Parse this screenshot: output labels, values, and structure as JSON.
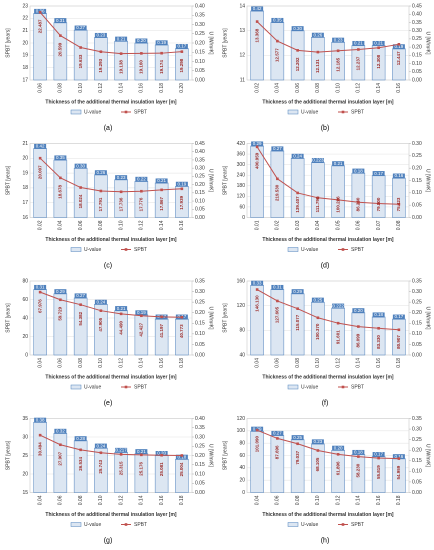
{
  "chart_data": [
    {
      "type": "combo",
      "caption": "(a)",
      "ylabel": "SPBT [years]",
      "y2label": "U [W/m²K]",
      "xlabel": "Thickness of the additional thermal insulation layer [m]",
      "categories": [
        "0.06",
        "0.08",
        "0.10",
        "0.12",
        "0.14",
        "0.16",
        "0.18",
        "0.20"
      ],
      "ylim": [
        17,
        23
      ],
      "yticks": [
        17,
        18,
        19,
        20,
        21,
        22,
        23
      ],
      "y2lim": [
        0,
        0.4
      ],
      "y2ticks": [
        {
          "value": 0,
          "label": "0.00"
        },
        {
          "value": 0.05,
          "label": "0.05"
        },
        {
          "value": 0.1,
          "label": "0.10"
        },
        {
          "value": 0.15,
          "label": "0.15"
        },
        {
          "value": 0.2,
          "label": "0.20"
        },
        {
          "value": 0.25,
          "label": "0.25"
        },
        {
          "value": 0.3,
          "label": "0.30"
        },
        {
          "value": 0.35,
          "label": "0.35"
        },
        {
          "value": 0.4,
          "label": "0.40"
        }
      ],
      "series": [
        {
          "name": "U-value",
          "type": "bar",
          "axis": "y2",
          "color": "#dce6f2",
          "values": [
            0.36,
            0.31,
            0.27,
            0.23,
            0.21,
            0.2,
            0.19,
            0.17
          ],
          "value_labels": [
            "0.36",
            "0.31",
            "0.27",
            "0.23",
            "0.21",
            "0.20",
            "0.19",
            "0.17"
          ]
        },
        {
          "name": "SPBT",
          "type": "line",
          "color": "#c0504d",
          "values": [
            22.487,
            20.599,
            19.633,
            19.293,
            19.138,
            19.16,
            19.174,
            19.298
          ],
          "value_labels": [
            "22.487",
            "20.599",
            "19.633",
            "19.293",
            "19.138",
            "19.160",
            "19.174",
            "19.298"
          ]
        }
      ]
    },
    {
      "type": "combo",
      "caption": "(b)",
      "ylabel": "SPBT [years]",
      "y2label": "U [W/m²K]",
      "xlabel": "Thickness of the additional thermal insulation layer [m]",
      "categories": [
        "0.02",
        "0.04",
        "0.06",
        "0.08",
        "0.10",
        "0.12",
        "0.14",
        "0.16"
      ],
      "ylim": [
        11,
        14
      ],
      "yticks": [
        11,
        12,
        13,
        14
      ],
      "y2lim": [
        0,
        0.45
      ],
      "y2ticks": [
        {
          "value": 0,
          "label": "0.00"
        },
        {
          "value": 0.05,
          "label": "0.05"
        },
        {
          "value": 0.1,
          "label": "0.10"
        },
        {
          "value": 0.15,
          "label": "0.15"
        },
        {
          "value": 0.2,
          "label": "0.20"
        },
        {
          "value": 0.25,
          "label": "0.25"
        },
        {
          "value": 0.3,
          "label": "0.30"
        },
        {
          "value": 0.35,
          "label": "0.35"
        },
        {
          "value": 0.4,
          "label": "0.40"
        },
        {
          "value": 0.45,
          "label": "0.45"
        }
      ],
      "series": [
        {
          "name": "U-value",
          "type": "bar",
          "axis": "y2",
          "color": "#dce6f2",
          "values": [
            0.42,
            0.35,
            0.3,
            0.26,
            0.23,
            0.21,
            0.21,
            0.19
          ],
          "value_labels": [
            "0.42",
            "0.35",
            "0.30",
            "0.26",
            "0.23",
            "0.21",
            "0.21",
            "0.19"
          ]
        },
        {
          "name": "SPBT",
          "type": "line",
          "color": "#c0504d",
          "values": [
            13.368,
            12.577,
            12.202,
            12.131,
            12.185,
            12.237,
            12.308,
            12.447
          ],
          "value_labels": [
            "13.368",
            "12.577",
            "12.202",
            "12.131",
            "12.185",
            "12.237",
            "12.308",
            "12.447"
          ]
        }
      ]
    },
    {
      "type": "combo",
      "caption": "(c)",
      "ylabel": "SPBT [years]",
      "y2label": "U [W/m²K]",
      "xlabel": "Thickness of the additional thermal insulation layer [m]",
      "categories": [
        "0.02",
        "0.04",
        "0.06",
        "0.08",
        "0.10",
        "0.12",
        "0.14",
        "0.16"
      ],
      "ylim": [
        16,
        21
      ],
      "yticks": [
        16,
        17,
        18,
        19,
        20,
        21
      ],
      "y2lim": [
        0,
        0.45
      ],
      "y2ticks": [
        {
          "value": 0,
          "label": "0.00"
        },
        {
          "value": 0.05,
          "label": "0.05"
        },
        {
          "value": 0.1,
          "label": "0.10"
        },
        {
          "value": 0.15,
          "label": "0.15"
        },
        {
          "value": 0.2,
          "label": "0.20"
        },
        {
          "value": 0.25,
          "label": "0.25"
        },
        {
          "value": 0.3,
          "label": "0.30"
        },
        {
          "value": 0.35,
          "label": "0.35"
        },
        {
          "value": 0.4,
          "label": "0.40"
        },
        {
          "value": 0.45,
          "label": "0.45"
        }
      ],
      "series": [
        {
          "name": "U-value",
          "type": "bar",
          "axis": "y2",
          "color": "#dce6f2",
          "values": [
            0.42,
            0.35,
            0.3,
            0.26,
            0.23,
            0.22,
            0.21,
            0.19
          ],
          "value_labels": [
            "0.42",
            "0.35",
            "0.30",
            "0.26",
            "0.23",
            "0.22",
            "0.21",
            "0.19"
          ]
        },
        {
          "name": "SPBT",
          "type": "line",
          "color": "#c0504d",
          "values": [
            20.007,
            18.678,
            18.024,
            17.791,
            17.736,
            17.776,
            17.867,
            17.939
          ],
          "value_labels": [
            "20.007",
            "18.678",
            "18.024",
            "17.791",
            "17.736",
            "17.776",
            "17.867",
            "17.939"
          ]
        }
      ]
    },
    {
      "type": "combo",
      "caption": "(d)",
      "ylabel": "SPBT [years]",
      "y2label": "U [W/m²K]",
      "xlabel": "Thickness of the additional thermal insulation layer [m]",
      "categories": [
        "0.01",
        "0.02",
        "0.03",
        "0.04",
        "0.05",
        "0.06",
        "0.07",
        "0.08"
      ],
      "ylim": [
        0,
        420
      ],
      "yticks": [
        0,
        60,
        120,
        180,
        240,
        300,
        360,
        420
      ],
      "y2lim": [
        0,
        0.3
      ],
      "y2ticks": [
        {
          "value": 0,
          "label": "0.00"
        },
        {
          "value": 0.05,
          "label": "0.05"
        },
        {
          "value": 0.1,
          "label": "0.10"
        },
        {
          "value": 0.15,
          "label": "0.15"
        },
        {
          "value": 0.2,
          "label": "0.20"
        },
        {
          "value": 0.25,
          "label": "0.25"
        },
        {
          "value": 0.3,
          "label": "0.30"
        }
      ],
      "series": [
        {
          "name": "U-value",
          "type": "bar",
          "axis": "y2",
          "color": "#dce6f2",
          "values": [
            0.29,
            0.27,
            0.24,
            0.223,
            0.21,
            0.18,
            0.17,
            0.16
          ],
          "value_labels": [
            "0.29",
            "0.27",
            "0.24",
            "0.223",
            "0.21",
            "0.18",
            "0.17",
            "0.16"
          ]
        },
        {
          "name": "SPBT",
          "type": "line",
          "color": "#c0504d",
          "values": [
            400.959,
            219.53,
            139.407,
            111.79,
            100.226,
            86.23,
            79.3,
            75.423
          ],
          "value_labels": [
            "400.959",
            "219.530",
            "139.407",
            "111.790",
            "100.226",
            "86.230",
            "79.300",
            "75.423"
          ]
        }
      ]
    },
    {
      "type": "combo",
      "caption": "(e)",
      "ylabel": "SPBT [years]",
      "y2label": "U [W/m²K]",
      "xlabel": "Thickness of the additional thermal insulation layer [m]",
      "categories": [
        "0.04",
        "0.06",
        "0.08",
        "0.10",
        "0.12",
        "0.14",
        "0.16",
        "0.18"
      ],
      "ylim": [
        0,
        80
      ],
      "yticks": [
        0,
        20,
        40,
        60,
        80
      ],
      "y2lim": [
        0,
        0.35
      ],
      "y2ticks": [
        {
          "value": 0,
          "label": "0.00"
        },
        {
          "value": 0.05,
          "label": "0.05"
        },
        {
          "value": 0.1,
          "label": "0.10"
        },
        {
          "value": 0.15,
          "label": "0.15"
        },
        {
          "value": 0.2,
          "label": "0.20"
        },
        {
          "value": 0.25,
          "label": "0.25"
        },
        {
          "value": 0.3,
          "label": "0.30"
        },
        {
          "value": 0.35,
          "label": "0.35"
        }
      ],
      "series": [
        {
          "name": "U-value",
          "type": "bar",
          "axis": "y2",
          "color": "#dce6f2",
          "values": [
            0.31,
            0.29,
            0.27,
            0.24,
            0.21,
            0.19,
            0.17,
            0.17
          ],
          "value_labels": [
            "0.31",
            "0.29",
            "0.27",
            "0.24",
            "0.21",
            "0.19",
            "0.17",
            "0.17"
          ]
        },
        {
          "name": "SPBT",
          "type": "line",
          "color": "#c0504d",
          "values": [
            67.976,
            59.729,
            54.382,
            47.905,
            44.49,
            42.427,
            41.197,
            40.773
          ],
          "value_labels": [
            "67.976",
            "59.729",
            "54.382",
            "47.905",
            "44.490",
            "42.427",
            "41.197",
            "40.773"
          ]
        }
      ]
    },
    {
      "type": "combo",
      "caption": "(f)",
      "ylabel": "SPBT [years]",
      "y2label": "U [W/m²K]",
      "xlabel": "Thickness of the additional thermal insulation layer [m]",
      "categories": [
        "0.04",
        "0.06",
        "0.08",
        "0.10",
        "0.12",
        "0.14",
        "0.16",
        "0.18"
      ],
      "ylim": [
        40,
        160
      ],
      "yticks": [
        40,
        80,
        120,
        160
      ],
      "y2lim": [
        0,
        0.35
      ],
      "y2ticks": [
        {
          "value": 0,
          "label": "0.00"
        },
        {
          "value": 0.05,
          "label": "0.05"
        },
        {
          "value": 0.1,
          "label": "0.10"
        },
        {
          "value": 0.15,
          "label": "0.15"
        },
        {
          "value": 0.2,
          "label": "0.20"
        },
        {
          "value": 0.25,
          "label": "0.25"
        },
        {
          "value": 0.3,
          "label": "0.30"
        },
        {
          "value": 0.35,
          "label": "0.35"
        }
      ],
      "series": [
        {
          "name": "U-value",
          "type": "bar",
          "axis": "y2",
          "color": "#dce6f2",
          "values": [
            0.33,
            0.31,
            0.29,
            0.25,
            0.222,
            0.2,
            0.18,
            0.17
          ],
          "value_labels": [
            "0.33",
            "0.31",
            "0.29",
            "0.25",
            "0.222",
            "0.20",
            "0.18",
            "0.17"
          ]
        },
        {
          "name": "SPBT",
          "type": "line",
          "color": "#c0504d",
          "values": [
            146.13,
            127.605,
            115.077,
            100.37,
            91.601,
            86.099,
            83.33,
            80.907
          ],
          "value_labels": [
            "146.130",
            "127.605",
            "115.077",
            "100.370",
            "91.601",
            "86.099",
            "83.330",
            "80.907"
          ]
        }
      ]
    },
    {
      "type": "combo",
      "caption": "(g)",
      "ylabel": "SPBT [years]",
      "y2label": "U [W/m²K]",
      "xlabel": "Thickness of the additional thermal insulation layer [m]",
      "categories": [
        "0.04",
        "0.06",
        "0.08",
        "0.10",
        "0.12",
        "0.14",
        "0.16",
        "0.18"
      ],
      "ylim": [
        15,
        35
      ],
      "yticks": [
        15,
        20,
        25,
        30,
        35
      ],
      "y2lim": [
        0,
        0.4
      ],
      "y2ticks": [
        {
          "value": 0,
          "label": "0.00"
        },
        {
          "value": 0.05,
          "label": "0.05"
        },
        {
          "value": 0.1,
          "label": "0.10"
        },
        {
          "value": 0.15,
          "label": "0.15"
        },
        {
          "value": 0.2,
          "label": "0.20"
        },
        {
          "value": 0.25,
          "label": "0.25"
        },
        {
          "value": 0.3,
          "label": "0.30"
        },
        {
          "value": 0.35,
          "label": "0.35"
        },
        {
          "value": 0.4,
          "label": "0.40"
        }
      ],
      "series": [
        {
          "name": "U-value",
          "type": "bar",
          "axis": "y2",
          "color": "#dce6f2",
          "values": [
            0.38,
            0.32,
            0.28,
            0.24,
            0.217,
            0.21,
            0.2,
            0.18
          ],
          "value_labels": [
            "0.38",
            "0.32",
            "0.28",
            "0.24",
            "0.217",
            "0.21",
            "0.20",
            "0.18"
          ]
        },
        {
          "name": "SPBT",
          "type": "line",
          "color": "#c0504d",
          "values": [
            30.494,
            27.907,
            26.534,
            25.743,
            25.315,
            25.176,
            25.081,
            25.004
          ],
          "value_labels": [
            "30.494",
            "27.907",
            "26.534",
            "25.743",
            "25.315",
            "25.176",
            "25.081",
            "25.004"
          ]
        }
      ]
    },
    {
      "type": "combo",
      "caption": "(h)",
      "ylabel": "SPBT [years]",
      "y2label": "U [W/m²K]",
      "xlabel": "Thickness of the additional thermal insulation layer [m]",
      "categories": [
        "0.04",
        "0.06",
        "0.08",
        "0.10",
        "0.12",
        "0.14",
        "0.16",
        "0.18"
      ],
      "ylim": [
        0,
        120
      ],
      "yticks": [
        0,
        20,
        40,
        60,
        80,
        100,
        120
      ],
      "y2lim": [
        0,
        0.35
      ],
      "y2ticks": [
        {
          "value": 0,
          "label": "0.00"
        },
        {
          "value": 0.05,
          "label": "0.05"
        },
        {
          "value": 0.1,
          "label": "0.10"
        },
        {
          "value": 0.15,
          "label": "0.15"
        },
        {
          "value": 0.2,
          "label": "0.20"
        },
        {
          "value": 0.25,
          "label": "0.25"
        },
        {
          "value": 0.3,
          "label": "0.30"
        },
        {
          "value": 0.35,
          "label": "0.35"
        }
      ],
      "series": [
        {
          "name": "U-value",
          "type": "bar",
          "axis": "y2",
          "color": "#dce6f2",
          "values": [
            0.29,
            0.27,
            0.25,
            0.23,
            0.2,
            0.18,
            0.17,
            0.16
          ],
          "value_labels": [
            "0.29",
            "0.27",
            "0.25",
            "0.23",
            "0.20",
            "0.18",
            "0.17",
            "0.16"
          ]
        },
        {
          "name": "SPBT",
          "type": "line",
          "color": "#c0504d",
          "values": [
            101.09,
            87.696,
            79.037,
            68.105,
            61.896,
            58.23,
            55.819,
            54.959
          ],
          "value_labels": [
            "101.090",
            "87.696",
            "79.037",
            "68.105",
            "61.896",
            "58.230",
            "55.819",
            "54.959"
          ]
        }
      ]
    }
  ]
}
